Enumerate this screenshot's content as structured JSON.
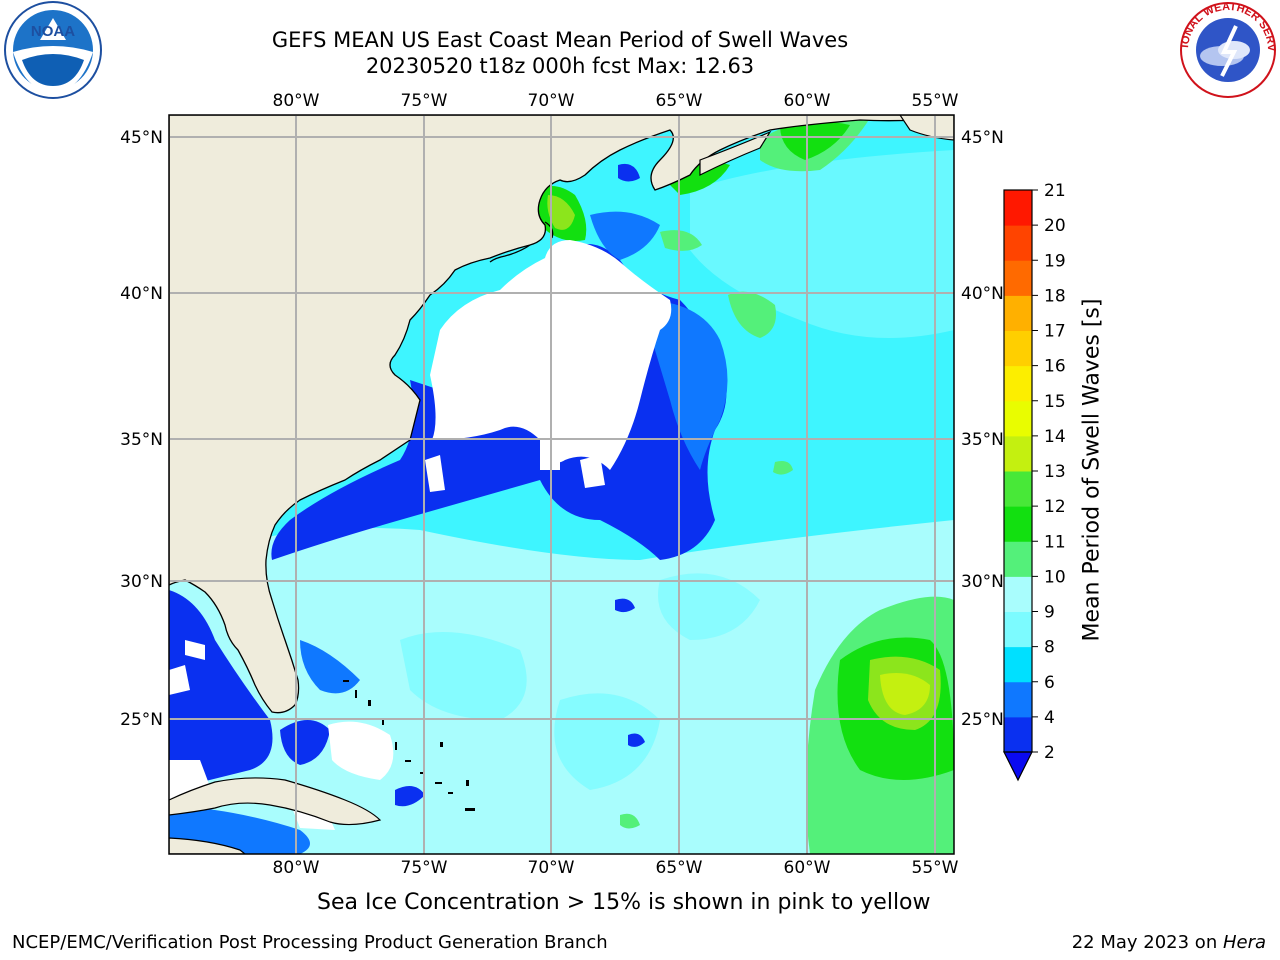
{
  "header": {
    "title_line1": "GEFS MEAN US East Coast Mean Period of Swell Waves",
    "title_line2": "20230520 t18z 000h fcst   Max: 12.63"
  },
  "logos": {
    "left": {
      "icon": "noaa-logo",
      "text": "NOAA"
    },
    "right": {
      "icon": "national-weather-service-logo",
      "text": "NATIONAL WEATHER SERVICE"
    }
  },
  "map": {
    "extent": {
      "lon": [
        -85,
        -54.5
      ],
      "lat": [
        20.5,
        45.8
      ]
    },
    "lon_ticks": [
      "80°W",
      "75°W",
      "70°W",
      "65°W",
      "60°W",
      "55°W"
    ],
    "lat_ticks": [
      "45°N",
      "40°N",
      "35°N",
      "30°N",
      "25°N"
    ],
    "grid": true,
    "land_color": "#efecdc",
    "no_data_color": "#ffffff"
  },
  "colorbar": {
    "label": "Mean Period of Swell Waves [s]",
    "tick_labels": [
      "2",
      "4",
      "6",
      "8",
      "9",
      "10",
      "11",
      "12",
      "13",
      "14",
      "15",
      "16",
      "17",
      "18",
      "19",
      "20",
      "21"
    ],
    "colors": [
      "#0a30f0",
      "#0f78ff",
      "#00e0ff",
      "#3ef5ff",
      "#7cfbff",
      "#a9fdfd",
      "#54f07a",
      "#12e010",
      "#48e838",
      "#8ce51c",
      "#c4f010",
      "#e9fd00",
      "#fcee00",
      "#ffcf00",
      "#ffb000",
      "#ff9000",
      "#ff6a00",
      "#ff4400",
      "#ff1800"
    ],
    "extend": "min"
  },
  "note": "Sea Ice Concentration > 15% is shown in pink to yellow",
  "footer": {
    "left": "NCEP/EMC/Verification Post Processing Product Generation Branch",
    "right_prefix": "22 May 2023 on ",
    "right_italic": "Hera"
  }
}
